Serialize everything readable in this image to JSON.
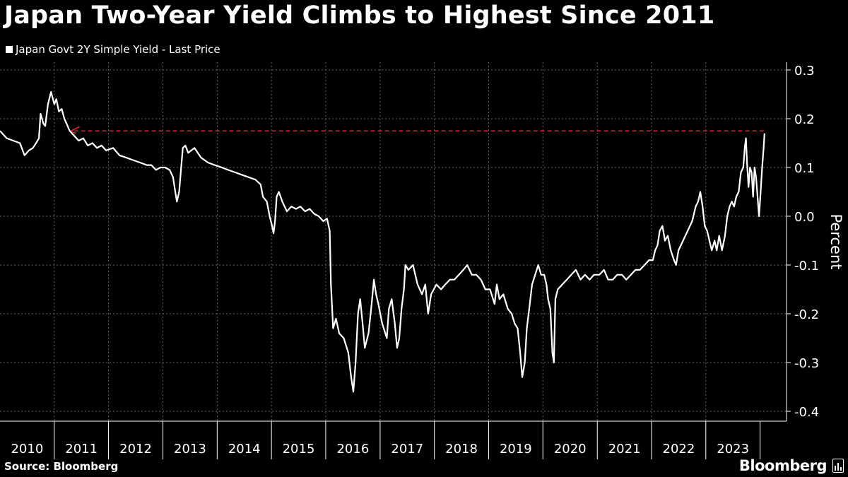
{
  "header": {
    "title": "Japan Two-Year Yield Climbs to Highest Since 2011",
    "legend_label": "Japan Govt 2Y Simple Yield - Last Price"
  },
  "footer": {
    "source": "Source: Bloomberg",
    "brand": "Bloomberg",
    "brand_icon": "bar-chart-icon"
  },
  "colors": {
    "background": "#000000",
    "line": "#ffffff",
    "reference_line": "#e0243a",
    "grid": "#666666"
  },
  "chart_data": {
    "type": "line",
    "title": "Japan Two-Year Yield Climbs to Highest Since 2011",
    "xlabel": "",
    "ylabel": "Percent",
    "ylim": [
      -0.4,
      0.3
    ],
    "xlim": [
      "2010-01-01",
      "2024-02-29"
    ],
    "y_ticks": [
      "0.3",
      "0.2",
      "0.1",
      "0.0",
      "-0.1",
      "-0.2",
      "-0.3",
      "-0.4"
    ],
    "x_ticks": [
      "2010",
      "2011",
      "2012",
      "2013",
      "2014",
      "2015",
      "2016",
      "2017",
      "2018",
      "2019",
      "2020",
      "2021",
      "2022",
      "2023"
    ],
    "grid": true,
    "legend_position": "top-left",
    "reference_line": {
      "y": 0.175,
      "from": "2011-04-15",
      "to": "2024-01-31",
      "style": "dashed",
      "has_arrow": true
    },
    "series": [
      {
        "name": "Japan Govt 2Y Simple Yield - Last Price",
        "points": [
          [
            "2010-01-01",
            0.175
          ],
          [
            "2010-02-15",
            0.16
          ],
          [
            "2010-04-01",
            0.155
          ],
          [
            "2010-05-15",
            0.15
          ],
          [
            "2010-06-15",
            0.125
          ],
          [
            "2010-07-15",
            0.135
          ],
          [
            "2010-08-10",
            0.14
          ],
          [
            "2010-09-01",
            0.15
          ],
          [
            "2010-09-20",
            0.16
          ],
          [
            "2010-10-01",
            0.21
          ],
          [
            "2010-10-20",
            0.19
          ],
          [
            "2010-11-01",
            0.185
          ],
          [
            "2010-11-20",
            0.23
          ],
          [
            "2010-12-10",
            0.255
          ],
          [
            "2011-01-01",
            0.23
          ],
          [
            "2011-01-15",
            0.24
          ],
          [
            "2011-02-01",
            0.215
          ],
          [
            "2011-02-20",
            0.22
          ],
          [
            "2011-03-10",
            0.2
          ],
          [
            "2011-03-25",
            0.19
          ],
          [
            "2011-04-15",
            0.175
          ],
          [
            "2011-05-15",
            0.165
          ],
          [
            "2011-06-15",
            0.155
          ],
          [
            "2011-07-15",
            0.16
          ],
          [
            "2011-08-15",
            0.145
          ],
          [
            "2011-09-15",
            0.15
          ],
          [
            "2011-10-15",
            0.14
          ],
          [
            "2011-11-15",
            0.145
          ],
          [
            "2011-12-15",
            0.135
          ],
          [
            "2012-02-01",
            0.14
          ],
          [
            "2012-03-15",
            0.125
          ],
          [
            "2012-05-01",
            0.12
          ],
          [
            "2012-06-15",
            0.115
          ],
          [
            "2012-08-01",
            0.11
          ],
          [
            "2012-09-15",
            0.105
          ],
          [
            "2012-10-15",
            0.105
          ],
          [
            "2012-11-15",
            0.095
          ],
          [
            "2012-12-15",
            0.1
          ],
          [
            "2013-01-15",
            0.1
          ],
          [
            "2013-02-15",
            0.095
          ],
          [
            "2013-03-10",
            0.08
          ],
          [
            "2013-03-25",
            0.05
          ],
          [
            "2013-04-05",
            0.03
          ],
          [
            "2013-04-20",
            0.05
          ],
          [
            "2013-05-01",
            0.09
          ],
          [
            "2013-05-15",
            0.14
          ],
          [
            "2013-06-01",
            0.145
          ],
          [
            "2013-06-20",
            0.13
          ],
          [
            "2013-08-01",
            0.14
          ],
          [
            "2013-09-15",
            0.12
          ],
          [
            "2013-11-01",
            0.11
          ],
          [
            "2013-12-15",
            0.105
          ],
          [
            "2014-02-01",
            0.1
          ],
          [
            "2014-03-15",
            0.095
          ],
          [
            "2014-05-01",
            0.09
          ],
          [
            "2014-06-15",
            0.085
          ],
          [
            "2014-08-01",
            0.08
          ],
          [
            "2014-09-15",
            0.075
          ],
          [
            "2014-10-20",
            0.065
          ],
          [
            "2014-11-05",
            0.04
          ],
          [
            "2014-12-01",
            0.03
          ],
          [
            "2014-12-20",
            0.0
          ],
          [
            "2015-01-05",
            -0.02
          ],
          [
            "2015-01-15",
            -0.035
          ],
          [
            "2015-01-25",
            -0.01
          ],
          [
            "2015-02-05",
            0.04
          ],
          [
            "2015-02-20",
            0.05
          ],
          [
            "2015-03-15",
            0.03
          ],
          [
            "2015-04-15",
            0.01
          ],
          [
            "2015-05-15",
            0.02
          ],
          [
            "2015-06-15",
            0.015
          ],
          [
            "2015-07-15",
            0.02
          ],
          [
            "2015-08-15",
            0.01
          ],
          [
            "2015-09-15",
            0.015
          ],
          [
            "2015-10-15",
            0.005
          ],
          [
            "2015-11-15",
            0.0
          ],
          [
            "2015-12-15",
            -0.01
          ],
          [
            "2016-01-10",
            -0.005
          ],
          [
            "2016-01-28",
            -0.03
          ],
          [
            "2016-02-05",
            -0.14
          ],
          [
            "2016-02-20",
            -0.23
          ],
          [
            "2016-03-10",
            -0.21
          ],
          [
            "2016-04-01",
            -0.24
          ],
          [
            "2016-05-01",
            -0.25
          ],
          [
            "2016-06-01",
            -0.28
          ],
          [
            "2016-06-20",
            -0.33
          ],
          [
            "2016-07-05",
            -0.36
          ],
          [
            "2016-07-20",
            -0.3
          ],
          [
            "2016-08-05",
            -0.2
          ],
          [
            "2016-08-20",
            -0.17
          ],
          [
            "2016-09-05",
            -0.22
          ],
          [
            "2016-09-20",
            -0.27
          ],
          [
            "2016-10-15",
            -0.24
          ],
          [
            "2016-11-05",
            -0.18
          ],
          [
            "2016-11-20",
            -0.13
          ],
          [
            "2016-12-05",
            -0.16
          ],
          [
            "2016-12-20",
            -0.18
          ],
          [
            "2017-01-15",
            -0.22
          ],
          [
            "2017-02-15",
            -0.25
          ],
          [
            "2017-03-01",
            -0.19
          ],
          [
            "2017-03-20",
            -0.17
          ],
          [
            "2017-04-10",
            -0.22
          ],
          [
            "2017-04-25",
            -0.27
          ],
          [
            "2017-05-10",
            -0.25
          ],
          [
            "2017-05-25",
            -0.19
          ],
          [
            "2017-06-10",
            -0.15
          ],
          [
            "2017-06-20",
            -0.1
          ],
          [
            "2017-07-10",
            -0.11
          ],
          [
            "2017-08-10",
            -0.1
          ],
          [
            "2017-09-10",
            -0.14
          ],
          [
            "2017-10-10",
            -0.16
          ],
          [
            "2017-11-01",
            -0.14
          ],
          [
            "2017-11-20",
            -0.2
          ],
          [
            "2017-12-10",
            -0.16
          ],
          [
            "2018-01-15",
            -0.14
          ],
          [
            "2018-02-15",
            -0.15
          ],
          [
            "2018-03-15",
            -0.14
          ],
          [
            "2018-04-15",
            -0.13
          ],
          [
            "2018-05-15",
            -0.13
          ],
          [
            "2018-06-15",
            -0.12
          ],
          [
            "2018-07-15",
            -0.11
          ],
          [
            "2018-08-10",
            -0.1
          ],
          [
            "2018-09-10",
            -0.12
          ],
          [
            "2018-10-10",
            -0.12
          ],
          [
            "2018-11-10",
            -0.13
          ],
          [
            "2018-12-10",
            -0.15
          ],
          [
            "2019-01-10",
            -0.15
          ],
          [
            "2019-02-10",
            -0.18
          ],
          [
            "2019-02-25",
            -0.14
          ],
          [
            "2019-03-15",
            -0.17
          ],
          [
            "2019-04-10",
            -0.16
          ],
          [
            "2019-05-10",
            -0.19
          ],
          [
            "2019-06-05",
            -0.2
          ],
          [
            "2019-06-25",
            -0.22
          ],
          [
            "2019-07-15",
            -0.23
          ],
          [
            "2019-08-01",
            -0.28
          ],
          [
            "2019-08-15",
            -0.33
          ],
          [
            "2019-09-01",
            -0.3
          ],
          [
            "2019-09-15",
            -0.23
          ],
          [
            "2019-10-01",
            -0.19
          ],
          [
            "2019-10-20",
            -0.14
          ],
          [
            "2019-11-10",
            -0.12
          ],
          [
            "2019-12-01",
            -0.1
          ],
          [
            "2019-12-20",
            -0.12
          ],
          [
            "2020-01-10",
            -0.12
          ],
          [
            "2020-01-25",
            -0.14
          ],
          [
            "2020-02-05",
            -0.17
          ],
          [
            "2020-02-20",
            -0.19
          ],
          [
            "2020-03-05",
            -0.28
          ],
          [
            "2020-03-15",
            -0.3
          ],
          [
            "2020-03-25",
            -0.17
          ],
          [
            "2020-04-10",
            -0.15
          ],
          [
            "2020-05-10",
            -0.14
          ],
          [
            "2020-06-10",
            -0.13
          ],
          [
            "2020-07-10",
            -0.12
          ],
          [
            "2020-08-10",
            -0.11
          ],
          [
            "2020-09-10",
            -0.13
          ],
          [
            "2020-10-10",
            -0.12
          ],
          [
            "2020-11-10",
            -0.13
          ],
          [
            "2020-12-10",
            -0.12
          ],
          [
            "2021-01-15",
            -0.12
          ],
          [
            "2021-02-15",
            -0.11
          ],
          [
            "2021-03-15",
            -0.13
          ],
          [
            "2021-04-15",
            -0.13
          ],
          [
            "2021-05-15",
            -0.12
          ],
          [
            "2021-06-15",
            -0.12
          ],
          [
            "2021-07-15",
            -0.13
          ],
          [
            "2021-08-15",
            -0.12
          ],
          [
            "2021-09-15",
            -0.11
          ],
          [
            "2021-10-15",
            -0.11
          ],
          [
            "2021-11-15",
            -0.1
          ],
          [
            "2021-12-15",
            -0.09
          ],
          [
            "2022-01-10",
            -0.09
          ],
          [
            "2022-01-25",
            -0.07
          ],
          [
            "2022-02-10",
            -0.06
          ],
          [
            "2022-02-25",
            -0.03
          ],
          [
            "2022-03-15",
            -0.02
          ],
          [
            "2022-04-01",
            -0.05
          ],
          [
            "2022-04-20",
            -0.04
          ],
          [
            "2022-05-10",
            -0.07
          ],
          [
            "2022-06-01",
            -0.09
          ],
          [
            "2022-06-15",
            -0.1
          ],
          [
            "2022-07-01",
            -0.07
          ],
          [
            "2022-08-01",
            -0.05
          ],
          [
            "2022-09-01",
            -0.03
          ],
          [
            "2022-10-01",
            -0.01
          ],
          [
            "2022-10-25",
            0.02
          ],
          [
            "2022-11-10",
            0.03
          ],
          [
            "2022-11-25",
            0.05
          ],
          [
            "2022-12-10",
            0.02
          ],
          [
            "2022-12-25",
            -0.02
          ],
          [
            "2023-01-10",
            -0.03
          ],
          [
            "2023-01-25",
            -0.05
          ],
          [
            "2023-02-10",
            -0.07
          ],
          [
            "2023-03-01",
            -0.05
          ],
          [
            "2023-03-15",
            -0.07
          ],
          [
            "2023-04-01",
            -0.04
          ],
          [
            "2023-04-20",
            -0.07
          ],
          [
            "2023-05-10",
            -0.04
          ],
          [
            "2023-05-25",
            0.0
          ],
          [
            "2023-06-10",
            0.02
          ],
          [
            "2023-06-25",
            0.03
          ],
          [
            "2023-07-10",
            0.02
          ],
          [
            "2023-07-25",
            0.04
          ],
          [
            "2023-08-10",
            0.05
          ],
          [
            "2023-08-25",
            0.09
          ],
          [
            "2023-09-10",
            0.1
          ],
          [
            "2023-09-20",
            0.14
          ],
          [
            "2023-09-28",
            0.16
          ],
          [
            "2023-10-05",
            0.11
          ],
          [
            "2023-10-15",
            0.06
          ],
          [
            "2023-10-25",
            0.1
          ],
          [
            "2023-11-05",
            0.09
          ],
          [
            "2023-11-15",
            0.04
          ],
          [
            "2023-11-25",
            0.1
          ],
          [
            "2023-12-05",
            0.08
          ],
          [
            "2023-12-15",
            0.04
          ],
          [
            "2023-12-25",
            0.0
          ],
          [
            "2024-01-05",
            0.05
          ],
          [
            "2024-01-15",
            0.1
          ],
          [
            "2024-01-25",
            0.14
          ],
          [
            "2024-01-31",
            0.17
          ]
        ]
      }
    ]
  }
}
